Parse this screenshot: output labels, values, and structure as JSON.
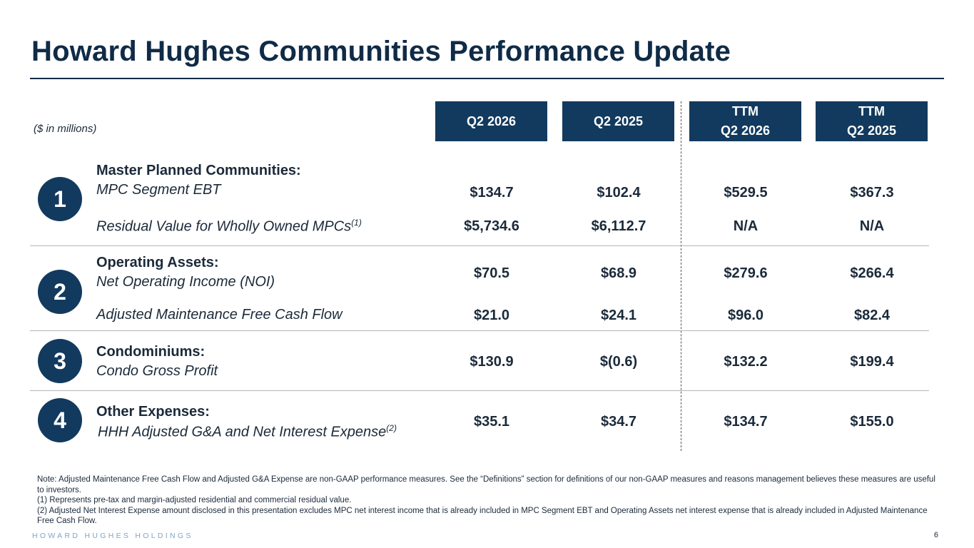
{
  "title": "Howard Hughes Communities Performance Update",
  "units_note": "($ in millions)",
  "columns": [
    {
      "line1": "Q2 2026",
      "line2": ""
    },
    {
      "line1": "Q2 2025",
      "line2": ""
    },
    {
      "line1": "TTM",
      "line2": "Q2 2026"
    },
    {
      "line1": "TTM",
      "line2": "Q2 2025"
    }
  ],
  "sections": [
    {
      "number": "1",
      "heading": "Master Planned Communities:",
      "rows": [
        {
          "label": "MPC Segment EBT",
          "sup": "",
          "values": [
            "$134.7",
            "$102.4",
            "$529.5",
            "$367.3"
          ]
        },
        {
          "label": "Residual Value for Wholly Owned MPCs",
          "sup": "(1)",
          "values": [
            "$5,734.6",
            "$6,112.7",
            "N/A",
            "N/A"
          ]
        }
      ]
    },
    {
      "number": "2",
      "heading": "Operating Assets:",
      "rows": [
        {
          "label": "Net Operating Income (NOI)",
          "sup": "",
          "values": [
            "$70.5",
            "$68.9",
            "$279.6",
            "$266.4"
          ]
        },
        {
          "label": "Adjusted Maintenance Free Cash Flow",
          "sup": "",
          "values": [
            "$21.0",
            "$24.1",
            "$96.0",
            "$82.4"
          ]
        }
      ]
    },
    {
      "number": "3",
      "heading": "Condominiums:",
      "rows": [
        {
          "label": "Condo Gross Profit",
          "sup": "",
          "values": [
            "$130.9",
            "$(0.6)",
            "$132.2",
            "$199.4"
          ]
        }
      ]
    },
    {
      "number": "4",
      "heading": "Other Expenses:",
      "rows": [
        {
          "label": "HHH Adjusted G&A and Net Interest Expense",
          "sup": "(2)",
          "values": [
            "$35.1",
            "$34.7",
            "$134.7",
            "$155.0"
          ]
        }
      ]
    }
  ],
  "notes": [
    "Note: Adjusted Maintenance Free Cash Flow and Adjusted G&A Expense are non-GAAP performance measures. See the “Definitions” section for definitions of our non-GAAP measures and reasons management believes these measures are useful to investors.",
    "(1) Represents pre-tax and margin-adjusted residential and commercial residual value.",
    "(2) Adjusted Net Interest Expense amount disclosed in this presentation excludes MPC net interest income that is already included in MPC Segment EBT and Operating Assets net interest expense that is already included in Adjusted Maintenance Free Cash Flow."
  ],
  "footer": {
    "brand": "HOWARD HUGHES HOLDINGS",
    "page_number": "6"
  },
  "colors": {
    "navy": "#123a5e",
    "title": "#0f2b46",
    "brand_light_blue": "#7fa5c8"
  }
}
